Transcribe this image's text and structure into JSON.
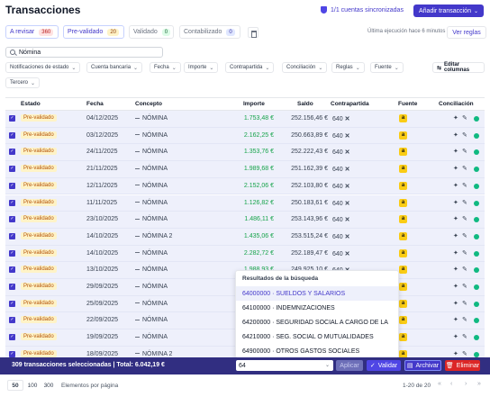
{
  "header": {
    "title": "Transacciones",
    "sync_text": "1/1 cuentas sincronizadas",
    "add_button": "Añadir transacción"
  },
  "status_tabs": [
    {
      "label": "A revisar",
      "count": "360"
    },
    {
      "label": "Pre-validado",
      "count": "20"
    },
    {
      "label": "Validado",
      "count": "0"
    },
    {
      "label": "Contabilizado",
      "count": "0"
    }
  ],
  "last_execution": "Última ejecución hace 6 minutos",
  "view_rules": "Ver reglas",
  "search": {
    "value": "Nómina"
  },
  "filters": [
    "Notificaciones de estado",
    "Cuenta bancaria",
    "Fecha",
    "Importe",
    "Contrapartida",
    "Conciliación",
    "Reglas",
    "Fuente",
    "Tercero"
  ],
  "edit_columns": "Editar columnas",
  "table": {
    "headers": [
      "Estado",
      "Fecha",
      "Concepto",
      "Importe",
      "Saldo",
      "Contrapartida",
      "Fuente",
      "Conciliación"
    ],
    "rows": [
      {
        "estado": "Pre-validado",
        "fecha": "04/12/2025",
        "concepto": "NÓMINA",
        "importe": "1.753,48 €",
        "saldo": "252.156,46 €",
        "contrapartida": "640"
      },
      {
        "estado": "Pre-validado",
        "fecha": "03/12/2025",
        "concepto": "NÓMINA",
        "importe": "2.162,25 €",
        "saldo": "250.663,89 €",
        "contrapartida": "640"
      },
      {
        "estado": "Pre-validado",
        "fecha": "24/11/2025",
        "concepto": "NÓMINA",
        "importe": "1.353,76 €",
        "saldo": "252.222,43 €",
        "contrapartida": "640"
      },
      {
        "estado": "Pre-validado",
        "fecha": "21/11/2025",
        "concepto": "NÓMINA",
        "importe": "1.989,68 €",
        "saldo": "251.162,39 €",
        "contrapartida": "640"
      },
      {
        "estado": "Pre-validado",
        "fecha": "12/11/2025",
        "concepto": "NÓMINA",
        "importe": "2.152,06 €",
        "saldo": "252.103,80 €",
        "contrapartida": "640"
      },
      {
        "estado": "Pre-validado",
        "fecha": "11/11/2025",
        "concepto": "NÓMINA",
        "importe": "1.126,82 €",
        "saldo": "250.183,61 €",
        "contrapartida": "640"
      },
      {
        "estado": "Pre-validado",
        "fecha": "23/10/2025",
        "concepto": "NÓMINA",
        "importe": "1.486,11 €",
        "saldo": "253.143,96 €",
        "contrapartida": "640"
      },
      {
        "estado": "Pre-validado",
        "fecha": "14/10/2025",
        "concepto": "NÓMINA 2",
        "importe": "1.435,06 €",
        "saldo": "253.515,24 €",
        "contrapartida": "640"
      },
      {
        "estado": "Pre-validado",
        "fecha": "14/10/2025",
        "concepto": "NÓMINA",
        "importe": "2.282,72 €",
        "saldo": "252.189,47 €",
        "contrapartida": "640"
      },
      {
        "estado": "Pre-validado",
        "fecha": "13/10/2025",
        "concepto": "NÓMINA",
        "importe": "1.988,93 €",
        "saldo": "249.925,10 €",
        "contrapartida": "640"
      },
      {
        "estado": "Pre-validado",
        "fecha": "29/09/2025",
        "concepto": "NÓMINA",
        "importe": "",
        "saldo": "",
        "contrapartida": ""
      },
      {
        "estado": "Pre-validado",
        "fecha": "25/09/2025",
        "concepto": "NÓMINA",
        "importe": "",
        "saldo": "",
        "contrapartida": ""
      },
      {
        "estado": "Pre-validado",
        "fecha": "22/09/2025",
        "concepto": "NÓMINA",
        "importe": "",
        "saldo": "",
        "contrapartida": ""
      },
      {
        "estado": "Pre-validado",
        "fecha": "19/09/2025",
        "concepto": "NÓMINA",
        "importe": "",
        "saldo": "",
        "contrapartida": ""
      },
      {
        "estado": "Pre-validado",
        "fecha": "18/09/2025",
        "concepto": "NÓMINA 2",
        "importe": "",
        "saldo": "",
        "contrapartida": ""
      }
    ]
  },
  "dropdown": {
    "heading": "Resultados de la búsqueda",
    "items": [
      "64000000 · SUELDOS Y SALARIOS",
      "64100000 · INDEMNIZACIONES",
      "64200000 · SEGURIDAD SOCIAL A CARGO DE LA",
      "64210000 · SEG. SOCIAL O MUTUALIDADES",
      "64900000 · OTROS GASTOS SOCIALES"
    ]
  },
  "action_bar": {
    "selection_text": "309 transacciones seleccionadas | Total: 6.042,19 €",
    "counterpart_input": "64",
    "apply": "Aplicar",
    "validate": "Validar",
    "archive": "Archivar",
    "delete": "Eliminar"
  },
  "pagination": {
    "sizes": [
      "50",
      "100",
      "300"
    ],
    "label": "Elementos por página",
    "range": "1-20 de 20"
  },
  "colors": {
    "accent": "#4338ca",
    "row_selected": "#eef0fb",
    "amount_green": "#16a34a",
    "status_dot": "#10b981",
    "delete_red": "#dc2626"
  }
}
